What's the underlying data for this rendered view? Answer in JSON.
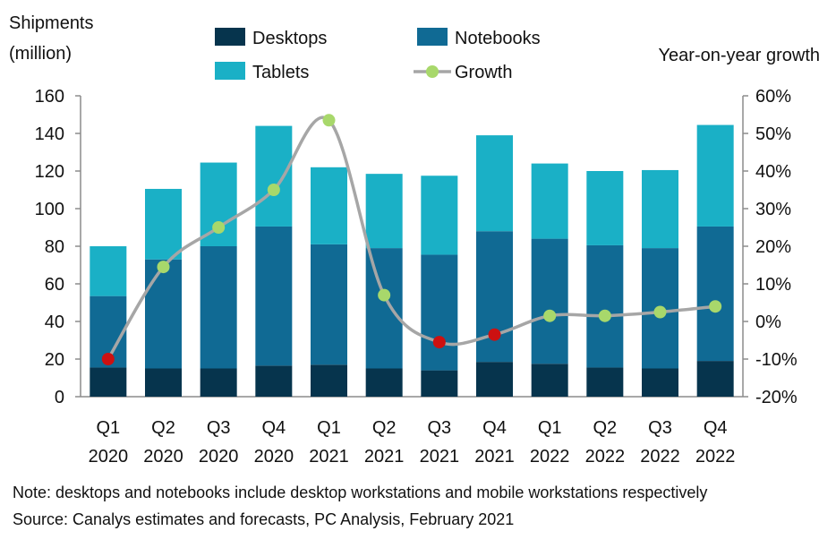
{
  "chart_data": {
    "type": "bar",
    "stacked": true,
    "categories": [
      [
        "Q1",
        "2020"
      ],
      [
        "Q2",
        "2020"
      ],
      [
        "Q3",
        "2020"
      ],
      [
        "Q4",
        "2020"
      ],
      [
        "Q1",
        "2021"
      ],
      [
        "Q2",
        "2021"
      ],
      [
        "Q3",
        "2021"
      ],
      [
        "Q4",
        "2021"
      ],
      [
        "Q1",
        "2022"
      ],
      [
        "Q2",
        "2022"
      ],
      [
        "Q3",
        "2022"
      ],
      [
        "Q4",
        "2022"
      ]
    ],
    "series": [
      {
        "name": "Desktops",
        "color": "#06344d",
        "values": [
          15.5,
          15,
          15,
          16.5,
          17,
          15,
          14,
          18.5,
          17.5,
          15.5,
          15,
          19
        ]
      },
      {
        "name": "Notebooks",
        "color": "#106a94",
        "values": [
          38,
          58,
          65,
          74,
          64,
          64,
          61.5,
          69.5,
          66.5,
          65,
          64,
          71.5
        ]
      },
      {
        "name": "Tablets",
        "color": "#1ab0c6",
        "values": [
          26.5,
          37.5,
          44.5,
          53.5,
          41,
          39.5,
          42,
          51,
          40,
          39.5,
          41.5,
          54
        ]
      }
    ],
    "line_series": {
      "name": "Growth",
      "axis": "right",
      "values": [
        -10,
        14.5,
        25,
        35,
        53.5,
        7,
        -5.5,
        -3.5,
        1.5,
        1.5,
        2.5,
        4
      ],
      "marker_colors": [
        "#cc1111",
        "#a8d86b",
        "#a8d86b",
        "#a8d86b",
        "#a8d86b",
        "#a8d86b",
        "#cc1111",
        "#cc1111",
        "#a8d86b",
        "#a8d86b",
        "#a8d86b",
        "#a8d86b"
      ],
      "line_color": "#a6a6a6"
    },
    "ylabel_left": [
      "Shipments",
      "(million)"
    ],
    "ylabel_right": "Year-on-year growth",
    "ylim_left": [
      0,
      160
    ],
    "ylim_right": [
      -20,
      60
    ],
    "yticks_left": [
      "0",
      "20",
      "40",
      "60",
      "80",
      "100",
      "120",
      "140",
      "160"
    ],
    "yticks_right": [
      "-20%",
      "-10%",
      "0%",
      "10%",
      "20%",
      "30%",
      "40%",
      "50%",
      "60%"
    ],
    "legend": [
      "Desktops",
      "Notebooks",
      "Tablets",
      "Growth"
    ],
    "legend_position": "top",
    "grid": false
  },
  "notes": {
    "line1": "Note: desktops and notebooks include desktop workstations and mobile workstations respectively",
    "line2": "Source: Canalys estimates and forecasts, PC Analysis, February 2021"
  }
}
